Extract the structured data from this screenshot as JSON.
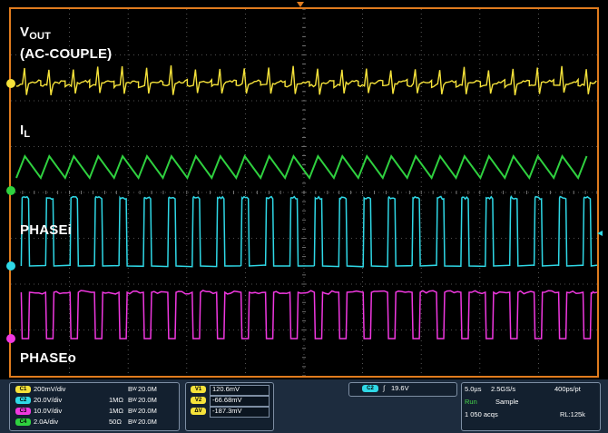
{
  "labels": {
    "vout_main": "V",
    "vout_sub": "OUT",
    "vout_note": "(AC-COUPLE)",
    "il_main": "I",
    "il_sub": "L",
    "phasei": "PHASEi",
    "phaseo": "PHASEo"
  },
  "colors": {
    "frame": "#e07b1e",
    "grid": "#777777",
    "vout": "#f5e23a",
    "il": "#2fd13f",
    "phasei": "#2fd8e6",
    "phaseo": "#f038e0"
  },
  "chart_data": {
    "type": "line",
    "grid": true,
    "divisions": {
      "x": 10,
      "y": 8
    },
    "series": [
      {
        "name": "VOUT (AC-COUPLE)",
        "channel": "C1",
        "waveform": "ac-ripple",
        "cycles": 24
      },
      {
        "name": "IL",
        "channel": "C4",
        "waveform": "triangle",
        "cycles": 24
      },
      {
        "name": "PHASEi",
        "channel": "C2",
        "waveform": "square",
        "cycles": 24,
        "duty": 0.3
      },
      {
        "name": "PHASEo",
        "channel": "C3",
        "waveform": "square-inverted",
        "cycles": 24,
        "duty": 0.3
      }
    ]
  },
  "status": {
    "channels": [
      {
        "badge": "C1",
        "scale": "200mV/div",
        "coupling": "",
        "bw": "20.0M",
        "color": "#f5e23a"
      },
      {
        "badge": "C2",
        "scale": "20.0V/div",
        "coupling": "1MΩ",
        "bw": "20.0M",
        "color": "#2fd8e6"
      },
      {
        "badge": "C3",
        "scale": "10.0V/div",
        "coupling": "1MΩ",
        "bw": "20.0M",
        "color": "#f038e0"
      },
      {
        "badge": "C4",
        "scale": "2.0A/div",
        "coupling": "50Ω",
        "bw": "20.0M",
        "color": "#2fd13f"
      }
    ],
    "bw_prefix": "B",
    "bw_sub": "W",
    "cursors": [
      {
        "badge": "V1",
        "value": "120.6mV"
      },
      {
        "badge": "V2",
        "value": "-66.68mV"
      },
      {
        "badge": "ΔV",
        "value": "-187.3mV"
      }
    ],
    "trigger": {
      "badge": "C2",
      "slope": "∫",
      "level": "19.6V"
    },
    "acq": {
      "timebase": "5.0µs",
      "rate": "2.5GS/s",
      "res": "400ps/pt",
      "state": "Run",
      "mode": "Sample",
      "count": "1 050 acqs",
      "rl": "RL:125k"
    }
  }
}
